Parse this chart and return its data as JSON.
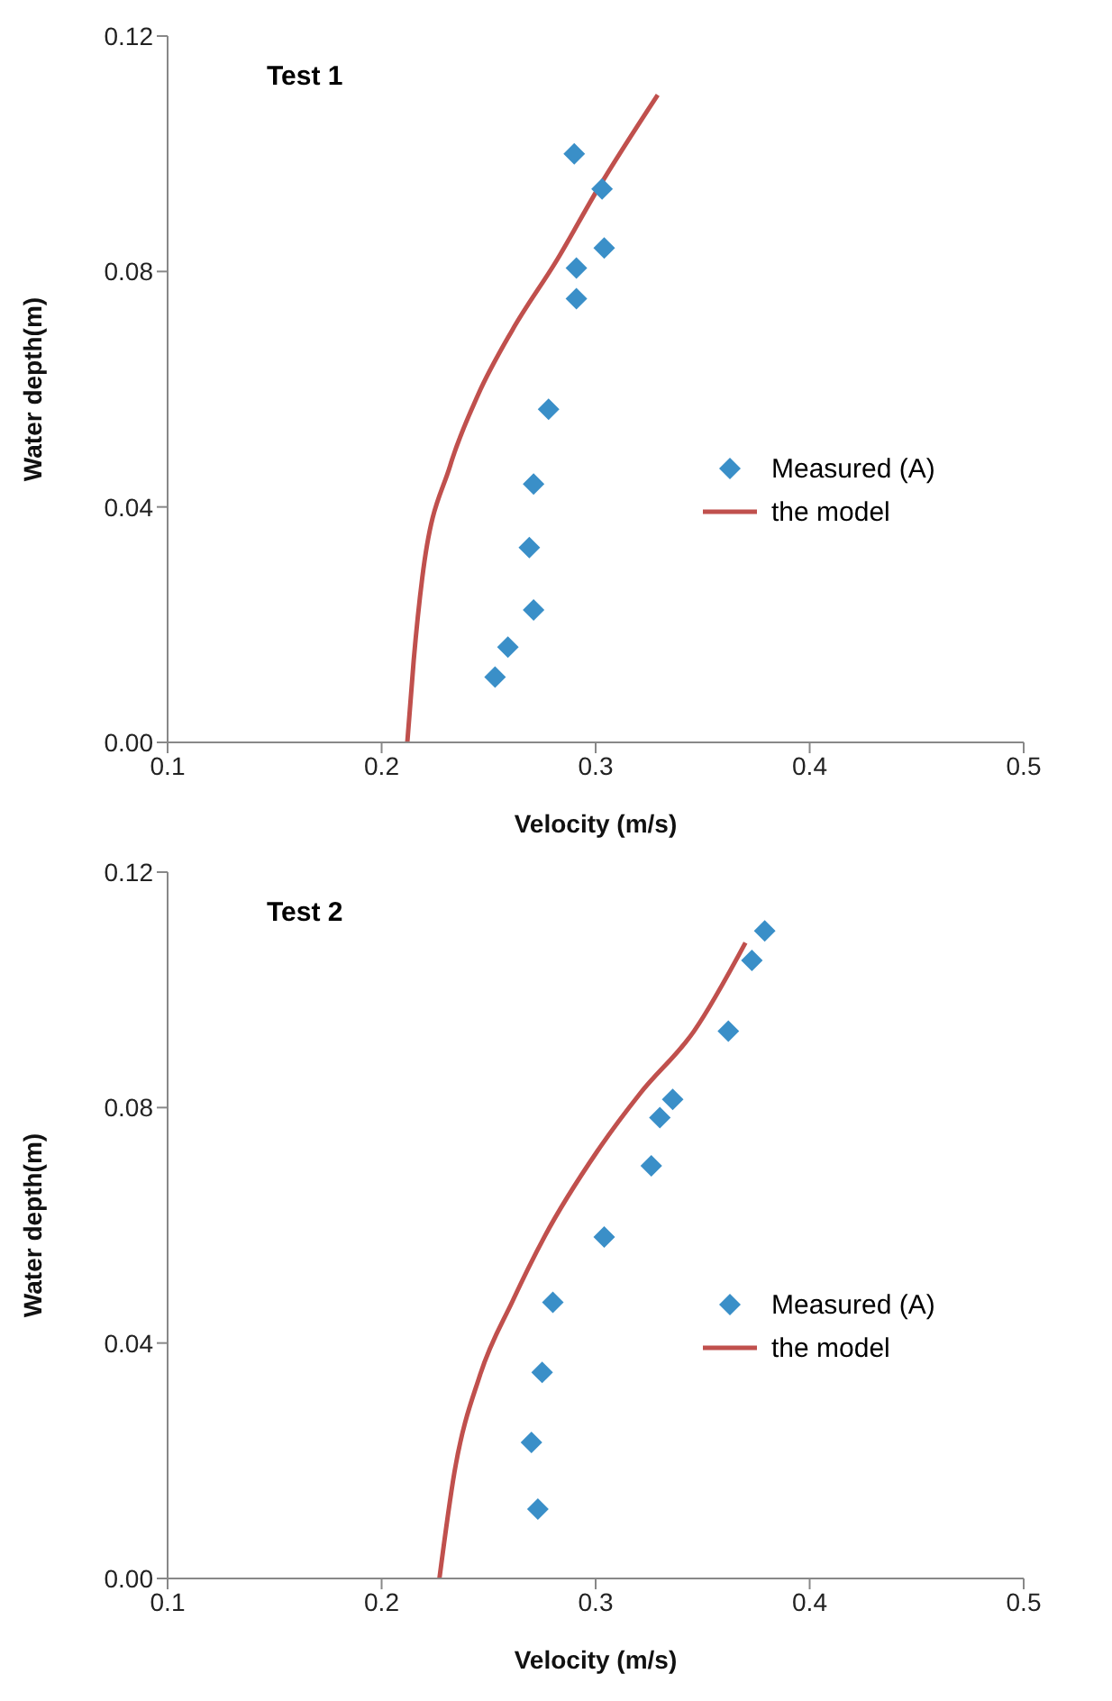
{
  "chart_data": [
    {
      "type": "scatter",
      "title": "Test 1",
      "xlabel": "Velocity (m/s)",
      "ylabel": "Water depth(m)",
      "xlim": [
        0.1,
        0.5
      ],
      "xticks": [
        0.1,
        0.2,
        0.3,
        0.4,
        0.5
      ],
      "ylim": [
        0,
        0.12
      ],
      "yticks": [
        {
          "value": 0,
          "label": "0.00"
        },
        {
          "value": 0.04,
          "label": "0.04"
        },
        {
          "value": 0.08,
          "label": "0.08"
        },
        {
          "value": 0.12,
          "label": "0.12"
        }
      ],
      "grid": false,
      "legend": "right",
      "series": [
        {
          "name": "Measured (A)",
          "marker": "diamond",
          "color": "#3a8fc8",
          "x": [
            0.29,
            0.303,
            0.304,
            0.291,
            0.291,
            0.278,
            0.271,
            0.269,
            0.271,
            0.259,
            0.253
          ],
          "values": [
            0.1,
            0.094,
            0.084,
            0.0806,
            0.0754,
            0.0566,
            0.0439,
            0.0331,
            0.0225,
            0.0162,
            0.0111
          ]
        },
        {
          "name": "the model",
          "type": "line",
          "marker": "none",
          "line_style": "solid",
          "color": "#c0504d",
          "x": [
            0.212,
            0.215,
            0.219,
            0.232,
            0.245,
            0.261,
            0.282,
            0.301,
            0.329
          ],
          "values": [
            0,
            0.014,
            0.028,
            0.047,
            0.059,
            0.07,
            0.082,
            0.094,
            0.11
          ]
        }
      ]
    },
    {
      "type": "scatter",
      "title": "Test 2",
      "xlabel": "Velocity (m/s)",
      "ylabel": "Water depth(m)",
      "xlim": [
        0.1,
        0.5
      ],
      "xticks": [
        0.1,
        0.2,
        0.3,
        0.4,
        0.5
      ],
      "ylim": [
        0,
        0.12
      ],
      "yticks": [
        {
          "value": 0,
          "label": "0.00"
        },
        {
          "value": 0.04,
          "label": "0.04"
        },
        {
          "value": 0.08,
          "label": "0.08"
        },
        {
          "value": 0.12,
          "label": "0.12"
        }
      ],
      "grid": false,
      "legend": "right",
      "series": [
        {
          "name": "Measured (A)",
          "marker": "diamond",
          "color": "#3a8fc8",
          "x": [
            0.379,
            0.373,
            0.362,
            0.336,
            0.33,
            0.326,
            0.304,
            0.28,
            0.275,
            0.27,
            0.273
          ],
          "values": [
            0.11,
            0.105,
            0.093,
            0.0814,
            0.0783,
            0.0701,
            0.058,
            0.0469,
            0.035,
            0.0231,
            0.0118
          ]
        },
        {
          "name": "the model",
          "type": "line",
          "marker": "none",
          "line_style": "solid",
          "color": "#c0504d",
          "x": [
            0.227,
            0.234,
            0.246,
            0.261,
            0.276,
            0.301,
            0.321,
            0.346,
            0.37
          ],
          "values": [
            0,
            0.018,
            0.0346,
            0.047,
            0.058,
            0.0727,
            0.0825,
            0.093,
            0.108
          ]
        }
      ]
    }
  ]
}
